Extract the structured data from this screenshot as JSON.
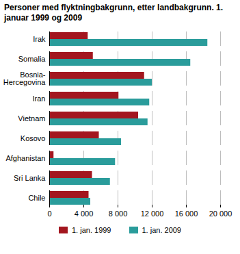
{
  "chart_data": {
    "type": "bar",
    "orientation": "horizontal",
    "title": "Personer med flyktningbakgrunn, etter landbakgrunn. 1. januar 1999 og 2009",
    "categories": [
      "Irak",
      "Somalia",
      "Bosnia-Hercegovina",
      "Iran",
      "Vietnam",
      "Kosovo",
      "Afghanistan",
      "Sri Lanka",
      "Chile"
    ],
    "series": [
      {
        "name": "1. jan. 1999",
        "color": "#a3161f",
        "values": [
          4500,
          5100,
          11100,
          8100,
          10400,
          5800,
          500,
          5000,
          4600
        ]
      },
      {
        "name": "1. jan. 2009",
        "color": "#2a9c9b",
        "values": [
          18500,
          16500,
          12000,
          11700,
          11500,
          8400,
          7700,
          7100,
          4800
        ]
      }
    ],
    "xlim": [
      0,
      20000
    ],
    "xticks": [
      0,
      {
        "value": 4000,
        "label": "4 000"
      },
      {
        "value": 8000,
        "label": "8 000"
      },
      {
        "value": 12000,
        "label": "12 000"
      },
      {
        "value": 16000,
        "label": "16 000"
      },
      {
        "value": 20000,
        "label": "20 000"
      }
    ],
    "grid": true,
    "legend": "bottom"
  }
}
